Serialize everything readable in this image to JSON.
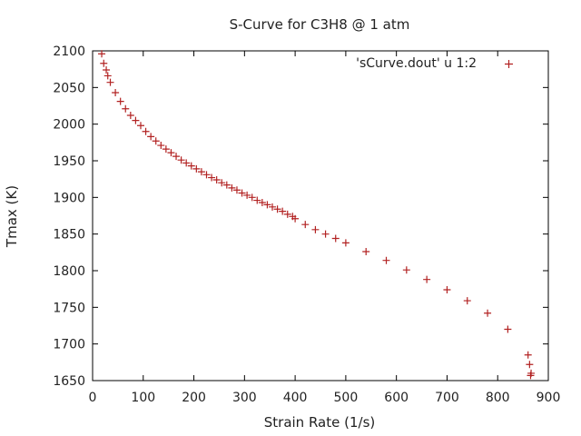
{
  "chart_data": {
    "type": "scatter",
    "title": "S-Curve for C3H8 @ 1 atm",
    "xlabel": "Strain Rate (1/s)",
    "ylabel": "Tmax (K)",
    "xlim": [
      0,
      900
    ],
    "ylim": [
      1650,
      2100
    ],
    "xticks": [
      "0",
      "100",
      "200",
      "300",
      "400",
      "500",
      "600",
      "700",
      "800",
      "900"
    ],
    "yticks": [
      "1650",
      "1700",
      "1750",
      "1800",
      "1850",
      "1900",
      "1950",
      "2000",
      "2050",
      "2100"
    ],
    "grid": false,
    "legend_position": "top-right",
    "marker_color": "#b22222",
    "series": [
      {
        "name": "'sCurve.dout' u 1:2",
        "points": [
          [
            18,
            2096
          ],
          [
            22,
            2083
          ],
          [
            27,
            2074
          ],
          [
            30,
            2066
          ],
          [
            35,
            2057
          ],
          [
            45,
            2043
          ],
          [
            55,
            2031
          ],
          [
            65,
            2021
          ],
          [
            75,
            2012
          ],
          [
            85,
            2005
          ],
          [
            95,
            1998
          ],
          [
            105,
            1990
          ],
          [
            115,
            1983
          ],
          [
            125,
            1977
          ],
          [
            135,
            1971
          ],
          [
            145,
            1966
          ],
          [
            155,
            1961
          ],
          [
            165,
            1956
          ],
          [
            175,
            1951
          ],
          [
            185,
            1947
          ],
          [
            195,
            1943
          ],
          [
            205,
            1939
          ],
          [
            215,
            1935
          ],
          [
            225,
            1931
          ],
          [
            235,
            1927
          ],
          [
            245,
            1924
          ],
          [
            255,
            1920
          ],
          [
            265,
            1917
          ],
          [
            275,
            1913
          ],
          [
            285,
            1910
          ],
          [
            295,
            1906
          ],
          [
            305,
            1903
          ],
          [
            315,
            1900
          ],
          [
            325,
            1896
          ],
          [
            335,
            1893
          ],
          [
            345,
            1890
          ],
          [
            355,
            1887
          ],
          [
            365,
            1884
          ],
          [
            375,
            1881
          ],
          [
            385,
            1877
          ],
          [
            395,
            1874
          ],
          [
            400,
            1871
          ],
          [
            420,
            1863
          ],
          [
            440,
            1856
          ],
          [
            460,
            1850
          ],
          [
            480,
            1844
          ],
          [
            500,
            1838
          ],
          [
            540,
            1826
          ],
          [
            580,
            1814
          ],
          [
            620,
            1801
          ],
          [
            660,
            1788
          ],
          [
            700,
            1774
          ],
          [
            740,
            1759
          ],
          [
            780,
            1742
          ],
          [
            820,
            1720
          ],
          [
            860,
            1685
          ],
          [
            863,
            1672
          ],
          [
            866,
            1660
          ],
          [
            865,
            1657
          ]
        ]
      }
    ]
  }
}
